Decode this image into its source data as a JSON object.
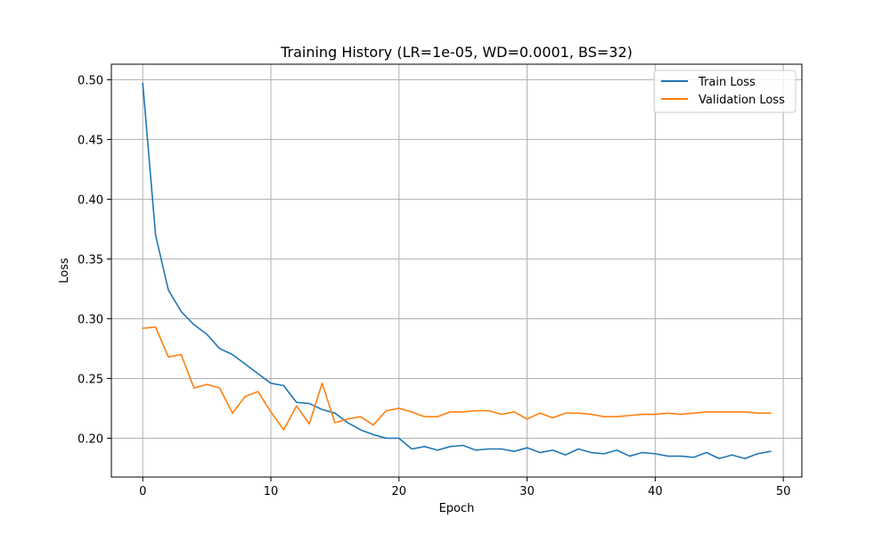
{
  "chart_data": {
    "type": "line",
    "title": "Training History (LR=1e-05, WD=0.0001, BS=32)",
    "xlabel": "Epoch",
    "ylabel": "Loss",
    "xlim": [
      -2.45,
      51.45
    ],
    "ylim": [
      0.1675,
      0.513
    ],
    "xticks": [
      0,
      10,
      20,
      30,
      40,
      50
    ],
    "yticks": [
      0.2,
      0.25,
      0.3,
      0.35,
      0.4,
      0.45,
      0.5
    ],
    "xtick_labels": [
      "0",
      "10",
      "20",
      "30",
      "40",
      "50"
    ],
    "ytick_labels": [
      "0.20",
      "0.25",
      "0.30",
      "0.35",
      "0.40",
      "0.45",
      "0.50"
    ],
    "grid": true,
    "legend_position": "top-right",
    "x": [
      0,
      1,
      2,
      3,
      4,
      5,
      6,
      7,
      8,
      9,
      10,
      11,
      12,
      13,
      14,
      15,
      16,
      17,
      18,
      19,
      20,
      21,
      22,
      23,
      24,
      25,
      26,
      27,
      28,
      29,
      30,
      31,
      32,
      33,
      34,
      35,
      36,
      37,
      38,
      39,
      40,
      41,
      42,
      43,
      44,
      45,
      46,
      47,
      48,
      49
    ],
    "series": [
      {
        "name": "Train Loss",
        "color": "#1f77b4",
        "values": [
          0.497,
          0.37,
          0.324,
          0.306,
          0.295,
          0.287,
          0.275,
          0.27,
          0.262,
          0.254,
          0.246,
          0.244,
          0.23,
          0.229,
          0.224,
          0.221,
          0.213,
          0.207,
          0.203,
          0.2,
          0.2,
          0.191,
          0.193,
          0.19,
          0.193,
          0.194,
          0.19,
          0.191,
          0.191,
          0.189,
          0.192,
          0.188,
          0.19,
          0.186,
          0.191,
          0.188,
          0.187,
          0.19,
          0.185,
          0.188,
          0.187,
          0.185,
          0.185,
          0.184,
          0.188,
          0.183,
          0.186,
          0.183,
          0.187,
          0.189
        ]
      },
      {
        "name": "Validation Loss",
        "color": "#ff7f0e",
        "values": [
          0.292,
          0.293,
          0.268,
          0.27,
          0.242,
          0.245,
          0.242,
          0.221,
          0.235,
          0.239,
          0.222,
          0.207,
          0.227,
          0.212,
          0.246,
          0.213,
          0.216,
          0.218,
          0.211,
          0.223,
          0.225,
          0.222,
          0.218,
          0.218,
          0.222,
          0.222,
          0.223,
          0.223,
          0.22,
          0.222,
          0.216,
          0.221,
          0.217,
          0.221,
          0.221,
          0.22,
          0.218,
          0.218,
          0.219,
          0.22,
          0.22,
          0.221,
          0.22,
          0.221,
          0.222,
          0.222,
          0.222,
          0.222,
          0.221,
          0.221
        ]
      }
    ]
  }
}
